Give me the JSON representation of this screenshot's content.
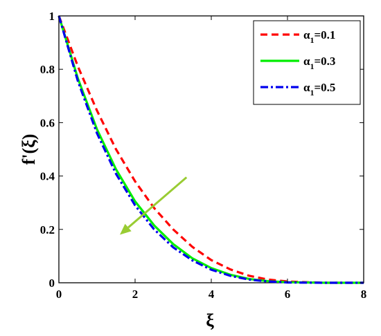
{
  "chart_data": {
    "type": "line",
    "title": "",
    "xlabel": "ξ",
    "ylabel": "f'(ξ)",
    "xlim": [
      0,
      8
    ],
    "ylim": [
      0,
      1
    ],
    "xticks": [
      "0",
      "2",
      "4",
      "6",
      "8"
    ],
    "yticks": [
      "0",
      "0.2",
      "0.4",
      "0.6",
      "0.8",
      "1"
    ],
    "grid": false,
    "legend_position": "top-right",
    "series": [
      {
        "name": "α1=0.1",
        "legend_base": "α",
        "legend_sub": "1",
        "legend_value": "=0.1",
        "color": "#ff0000",
        "style": "dashed",
        "x": [
          0,
          0.5,
          1,
          1.5,
          2,
          2.5,
          3,
          3.5,
          4,
          4.5,
          5,
          5.5,
          6,
          6.5,
          7,
          8
        ],
        "y": [
          1,
          0.81,
          0.645,
          0.5,
          0.38,
          0.28,
          0.2,
          0.135,
          0.085,
          0.05,
          0.026,
          0.012,
          0.005,
          0.002,
          0,
          0
        ]
      },
      {
        "name": "α1=0.3",
        "legend_base": "α",
        "legend_sub": "1",
        "legend_value": "=0.3",
        "color": "#00ee00",
        "style": "solid",
        "x": [
          0,
          0.5,
          1,
          1.5,
          2,
          2.5,
          3,
          3.5,
          4,
          4.5,
          5,
          5.5,
          6,
          7,
          8
        ],
        "y": [
          1,
          0.765,
          0.575,
          0.425,
          0.305,
          0.215,
          0.145,
          0.092,
          0.055,
          0.03,
          0.014,
          0.006,
          0.002,
          0,
          0
        ]
      },
      {
        "name": "α1=0.5",
        "legend_base": "α",
        "legend_sub": "1",
        "legend_value": "=0.5",
        "color": "#0000ee",
        "style": "dashdot",
        "x": [
          0,
          0.5,
          1,
          1.5,
          2,
          2.5,
          3,
          3.5,
          4,
          4.5,
          5,
          5.5,
          6,
          7,
          8
        ],
        "y": [
          1,
          0.755,
          0.56,
          0.408,
          0.29,
          0.2,
          0.133,
          0.084,
          0.049,
          0.026,
          0.012,
          0.005,
          0.001,
          0,
          0
        ]
      }
    ],
    "annotations": [
      {
        "type": "arrow",
        "color": "#99cc33",
        "from": [
          3.35,
          0.395
        ],
        "to": [
          1.6,
          0.18
        ]
      }
    ]
  }
}
